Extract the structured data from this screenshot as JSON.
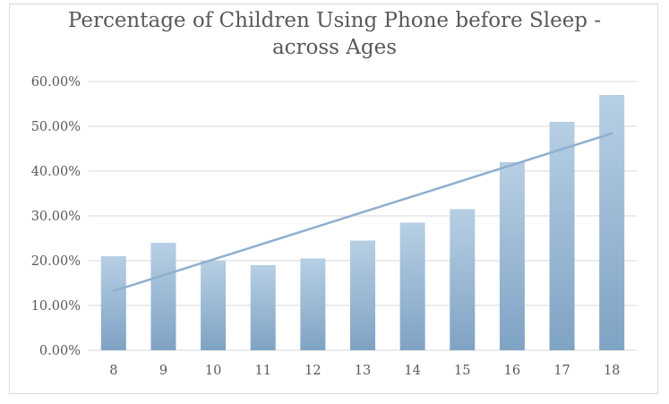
{
  "chart_data": {
    "type": "bar",
    "title": "Percentage of Children Using Phone before Sleep - across Ages",
    "title_lines": [
      "Percentage of Children Using Phone before Sleep -",
      "across Ages"
    ],
    "xlabel": "",
    "ylabel": "",
    "categories": [
      "8",
      "9",
      "10",
      "11",
      "12",
      "13",
      "14",
      "15",
      "16",
      "17",
      "18"
    ],
    "series": [
      {
        "values": [
          0.21,
          0.24,
          0.2,
          0.19,
          0.205,
          0.245,
          0.285,
          0.315,
          0.42,
          0.51,
          0.57
        ],
        "color": "#9dbedb"
      }
    ],
    "trendline": {
      "type": "linear",
      "color": "#8eafcf"
    },
    "ylim": [
      0,
      0.6
    ],
    "yticks": [
      0,
      0.1,
      0.2,
      0.3,
      0.4,
      0.5,
      0.6
    ],
    "ytick_labels": [
      "0.00%",
      "10.00%",
      "20.00%",
      "30.00%",
      "40.00%",
      "50.00%",
      "60.00%"
    ],
    "grid": true,
    "legend": "none",
    "colors": {
      "bar_top": "#b7cfe4",
      "bar_bottom": "#7fa3c4",
      "grid": "#d9d9d9",
      "text": "#595959"
    }
  }
}
